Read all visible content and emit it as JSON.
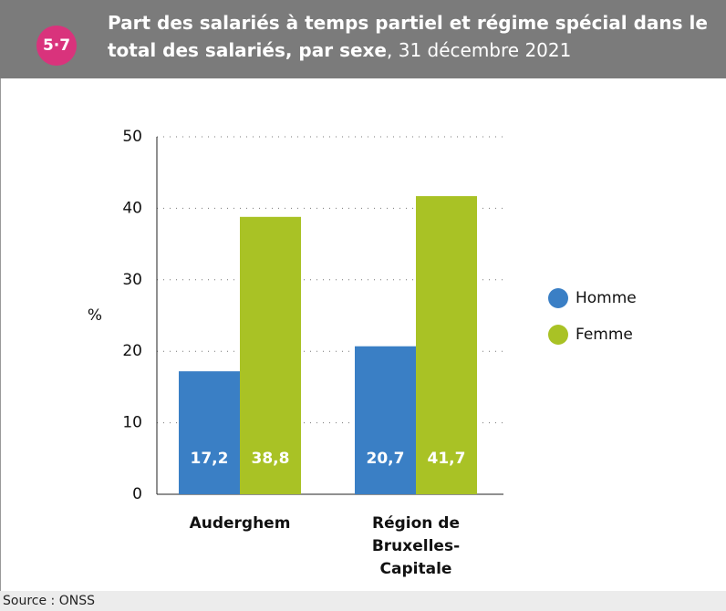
{
  "badge": "5·7",
  "source": "Source : ONSS",
  "chart_data": {
    "type": "bar",
    "title": "Part des salariés à temps partiel et régime spécial dans le total des salariés, par sexe",
    "subtitle": ", 31 décembre 2021",
    "ylabel": "%",
    "categories": [
      "Auderghem",
      "Région de Bruxelles-Capitale"
    ],
    "series": [
      {
        "name": "Homme",
        "color": "#3a7fc5",
        "values": [
          17.2,
          20.7
        ],
        "value_labels": [
          "17,2",
          "20,7"
        ]
      },
      {
        "name": "Femme",
        "color": "#a9c225",
        "values": [
          38.8,
          41.7
        ],
        "value_labels": [
          "38,8",
          "41,7"
        ]
      }
    ],
    "ylim": [
      0,
      50
    ],
    "yticks": [
      0,
      10,
      20,
      30,
      40,
      50
    ],
    "grid": true,
    "legend": "right"
  }
}
